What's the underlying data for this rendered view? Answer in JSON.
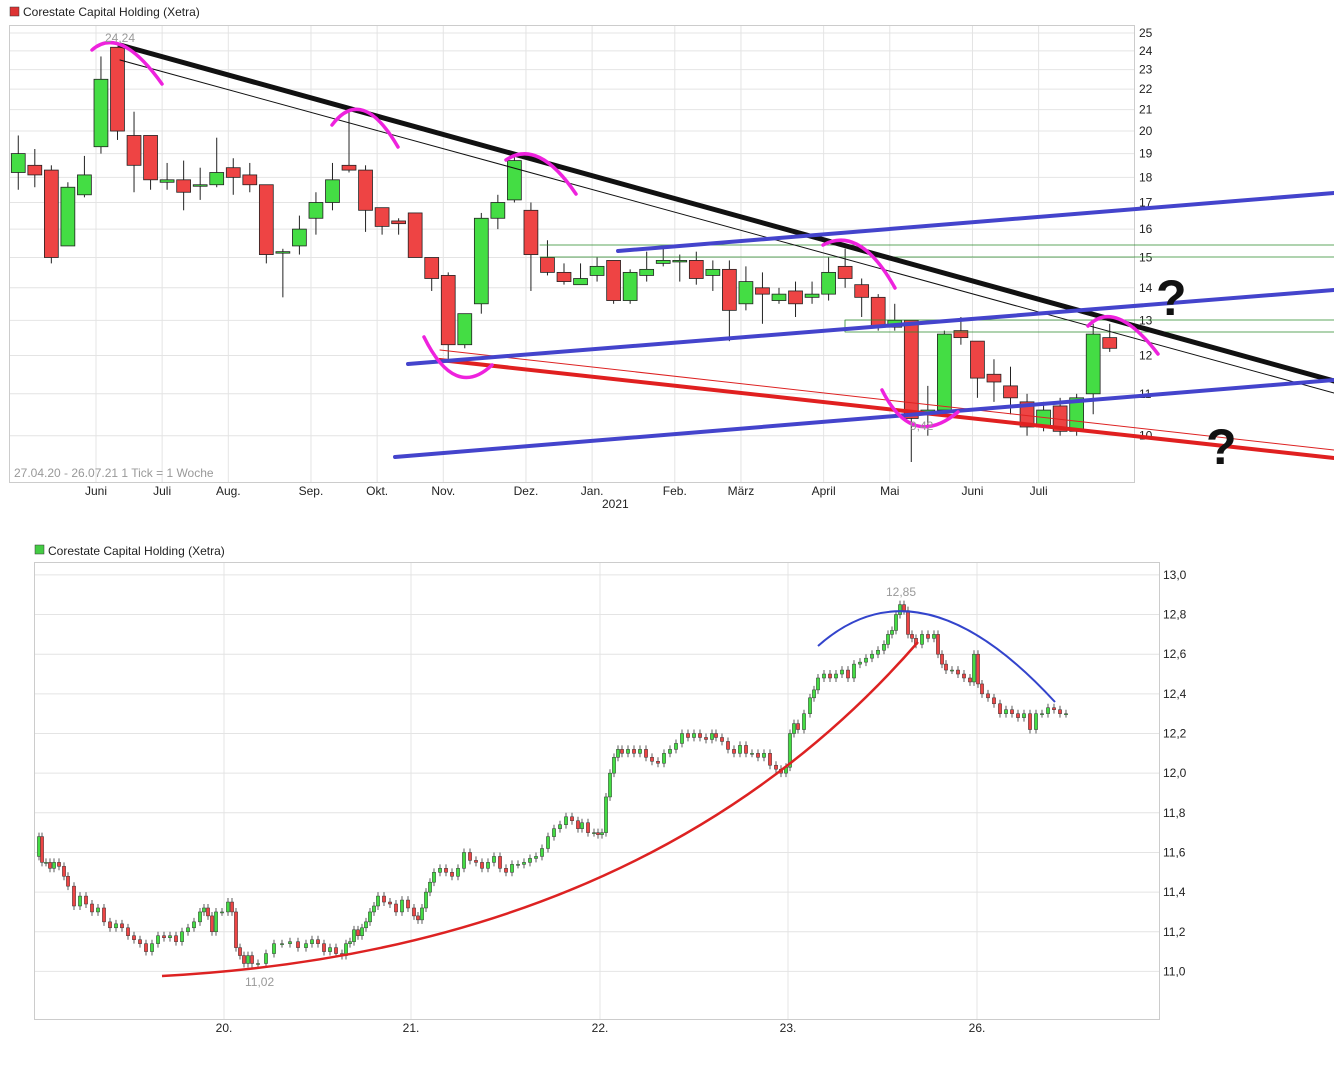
{
  "chart_data": [
    {
      "type": "candlestick",
      "title": "Corestate Capital Holding (Xetra)",
      "legend_color": "#dd3333",
      "info_text": "27.04.20 - 26.07.21   1 Tick = 1 Woche",
      "high_label": "24,24",
      "low_label": "9,42",
      "ylim": [
        9.0,
        25.4
      ],
      "y_scale": "log",
      "y_ticks": [
        "25",
        "24",
        "23",
        "22",
        "21",
        "20",
        "19",
        "18",
        "17",
        "16",
        "15",
        "14",
        "13",
        "12",
        "11",
        "10"
      ],
      "x_months": [
        "Juni",
        "Juli",
        "Aug.",
        "Sep.",
        "Okt.",
        "Nov.",
        "Dez.",
        "Jan.",
        "Feb.",
        "März",
        "April",
        "Mai",
        "Juni",
        "Juli"
      ],
      "x_year": "2021",
      "candles": [
        {
          "o": 18.2,
          "c": 19.0,
          "h": 19.8,
          "l": 17.5
        },
        {
          "o": 18.5,
          "c": 18.1,
          "h": 19.2,
          "l": 17.6
        },
        {
          "o": 18.3,
          "c": 15.0,
          "h": 18.5,
          "l": 14.8
        },
        {
          "o": 15.4,
          "c": 17.6,
          "h": 17.8,
          "l": 15.4
        },
        {
          "o": 17.3,
          "c": 18.1,
          "h": 18.9,
          "l": 17.2
        },
        {
          "o": 19.3,
          "c": 22.5,
          "h": 23.7,
          "l": 19.0
        },
        {
          "o": 24.2,
          "c": 20.0,
          "h": 24.24,
          "l": 19.6
        },
        {
          "o": 19.8,
          "c": 18.5,
          "h": 20.9,
          "l": 17.4
        },
        {
          "o": 19.8,
          "c": 17.9,
          "h": 19.8,
          "l": 17.5
        },
        {
          "o": 17.8,
          "c": 17.9,
          "h": 18.6,
          "l": 17.5
        },
        {
          "o": 17.9,
          "c": 17.4,
          "h": 18.7,
          "l": 16.7
        },
        {
          "o": 17.7,
          "c": 17.7,
          "h": 18.4,
          "l": 17.1
        },
        {
          "o": 17.7,
          "c": 18.2,
          "h": 19.7,
          "l": 17.6
        },
        {
          "o": 18.4,
          "c": 18.0,
          "h": 18.8,
          "l": 17.3
        },
        {
          "o": 18.1,
          "c": 17.7,
          "h": 18.6,
          "l": 17.4
        },
        {
          "o": 17.7,
          "c": 15.1,
          "h": 17.7,
          "l": 14.8
        },
        {
          "o": 15.2,
          "c": 15.2,
          "h": 15.3,
          "l": 13.7
        },
        {
          "o": 15.4,
          "c": 16.0,
          "h": 16.5,
          "l": 15.1
        },
        {
          "o": 16.4,
          "c": 17.0,
          "h": 17.4,
          "l": 15.8
        },
        {
          "o": 17.0,
          "c": 17.9,
          "h": 18.6,
          "l": 16.7
        },
        {
          "o": 18.5,
          "c": 18.3,
          "h": 20.9,
          "l": 18.2
        },
        {
          "o": 18.3,
          "c": 16.7,
          "h": 18.5,
          "l": 15.9
        },
        {
          "o": 16.8,
          "c": 16.1,
          "h": 16.8,
          "l": 15.8
        },
        {
          "o": 16.3,
          "c": 16.2,
          "h": 16.4,
          "l": 15.8
        },
        {
          "o": 16.6,
          "c": 15.0,
          "h": 16.6,
          "l": 15.0
        },
        {
          "o": 15.0,
          "c": 14.3,
          "h": 15.0,
          "l": 13.9
        },
        {
          "o": 14.4,
          "c": 12.3,
          "h": 14.5,
          "l": 11.8
        },
        {
          "o": 12.3,
          "c": 13.2,
          "h": 13.2,
          "l": 12.2
        },
        {
          "o": 13.5,
          "c": 16.4,
          "h": 16.6,
          "l": 13.2
        },
        {
          "o": 16.4,
          "c": 17.0,
          "h": 17.3,
          "l": 16.0
        },
        {
          "o": 17.1,
          "c": 18.7,
          "h": 18.9,
          "l": 17.0
        },
        {
          "o": 16.7,
          "c": 15.1,
          "h": 17.0,
          "l": 13.9
        },
        {
          "o": 15.0,
          "c": 14.5,
          "h": 15.6,
          "l": 14.4
        },
        {
          "o": 14.5,
          "c": 14.2,
          "h": 14.8,
          "l": 14.1
        },
        {
          "o": 14.1,
          "c": 14.3,
          "h": 14.8,
          "l": 14.1
        },
        {
          "o": 14.4,
          "c": 14.7,
          "h": 15.0,
          "l": 14.2
        },
        {
          "o": 14.9,
          "c": 13.6,
          "h": 14.9,
          "l": 13.5
        },
        {
          "o": 13.6,
          "c": 14.5,
          "h": 14.6,
          "l": 13.5
        },
        {
          "o": 14.4,
          "c": 14.6,
          "h": 15.2,
          "l": 14.2
        },
        {
          "o": 14.8,
          "c": 14.9,
          "h": 15.3,
          "l": 14.7
        },
        {
          "o": 14.9,
          "c": 14.9,
          "h": 15.1,
          "l": 14.2
        },
        {
          "o": 14.9,
          "c": 14.3,
          "h": 15.2,
          "l": 14.1
        },
        {
          "o": 14.4,
          "c": 14.6,
          "h": 14.9,
          "l": 13.9
        },
        {
          "o": 14.6,
          "c": 13.3,
          "h": 14.9,
          "l": 12.4
        },
        {
          "o": 13.5,
          "c": 14.2,
          "h": 14.7,
          "l": 13.3
        },
        {
          "o": 14.0,
          "c": 13.8,
          "h": 14.5,
          "l": 12.9
        },
        {
          "o": 13.6,
          "c": 13.8,
          "h": 14.0,
          "l": 13.5
        },
        {
          "o": 13.9,
          "c": 13.5,
          "h": 14.2,
          "l": 13.1
        },
        {
          "o": 13.7,
          "c": 13.8,
          "h": 14.2,
          "l": 13.5
        },
        {
          "o": 13.8,
          "c": 14.5,
          "h": 15.0,
          "l": 13.6
        },
        {
          "o": 14.7,
          "c": 14.3,
          "h": 15.3,
          "l": 14.0
        },
        {
          "o": 14.1,
          "c": 13.7,
          "h": 14.3,
          "l": 13.1
        },
        {
          "o": 13.7,
          "c": 12.8,
          "h": 13.8,
          "l": 12.7
        },
        {
          "o": 12.8,
          "c": 13.0,
          "h": 13.5,
          "l": 12.7
        },
        {
          "o": 13.0,
          "c": 10.4,
          "h": 13.0,
          "l": 9.42
        },
        {
          "o": 10.5,
          "c": 10.6,
          "h": 11.2,
          "l": 10.0
        },
        {
          "o": 10.6,
          "c": 12.6,
          "h": 12.7,
          "l": 10.5
        },
        {
          "o": 12.7,
          "c": 12.5,
          "h": 13.1,
          "l": 12.3
        },
        {
          "o": 12.4,
          "c": 11.4,
          "h": 12.4,
          "l": 10.9
        },
        {
          "o": 11.5,
          "c": 11.3,
          "h": 11.9,
          "l": 10.8
        },
        {
          "o": 11.2,
          "c": 10.9,
          "h": 11.7,
          "l": 10.5
        },
        {
          "o": 10.8,
          "c": 10.2,
          "h": 11.0,
          "l": 10.0
        },
        {
          "o": 10.2,
          "c": 10.6,
          "h": 10.8,
          "l": 10.1
        },
        {
          "o": 10.7,
          "c": 10.1,
          "h": 10.9,
          "l": 10.0
        },
        {
          "o": 10.1,
          "c": 10.9,
          "h": 11.0,
          "l": 10.0
        },
        {
          "o": 11.0,
          "c": 12.6,
          "h": 12.9,
          "l": 10.5
        },
        {
          "o": 12.5,
          "c": 12.2,
          "h": 12.9,
          "l": 12.1
        }
      ]
    },
    {
      "type": "candlestick",
      "title": "Corestate Capital Holding (Xetra)",
      "legend_color": "#44cc44",
      "high_label": "12,85",
      "low_label": "11,02",
      "ylim": [
        10.76,
        13.06
      ],
      "y_ticks": [
        "13,0",
        "12,8",
        "12,6",
        "12,4",
        "12,2",
        "12,0",
        "11,8",
        "11,6",
        "11,4",
        "11,2",
        "11,0"
      ],
      "x_ticks": [
        "20.",
        "21.",
        "22.",
        "23.",
        "26."
      ],
      "path": [
        [
          0,
          11.58
        ],
        [
          3,
          11.68
        ],
        [
          6,
          11.55
        ],
        [
          10,
          11.55
        ],
        [
          14,
          11.52
        ],
        [
          18,
          11.55
        ],
        [
          23,
          11.53
        ],
        [
          28,
          11.48
        ],
        [
          32,
          11.43
        ],
        [
          38,
          11.33
        ],
        [
          44,
          11.38
        ],
        [
          50,
          11.34
        ],
        [
          56,
          11.3
        ],
        [
          62,
          11.32
        ],
        [
          68,
          11.25
        ],
        [
          74,
          11.22
        ],
        [
          80,
          11.24
        ],
        [
          86,
          11.22
        ],
        [
          92,
          11.18
        ],
        [
          98,
          11.16
        ],
        [
          104,
          11.14
        ],
        [
          110,
          11.1
        ],
        [
          116,
          11.14
        ],
        [
          122,
          11.18
        ],
        [
          128,
          11.17
        ],
        [
          134,
          11.18
        ],
        [
          140,
          11.15
        ],
        [
          146,
          11.2
        ],
        [
          152,
          11.22
        ],
        [
          158,
          11.25
        ],
        [
          164,
          11.3
        ],
        [
          168,
          11.32
        ],
        [
          172,
          11.28
        ],
        [
          176,
          11.2
        ],
        [
          180,
          11.3
        ],
        [
          186,
          11.3
        ],
        [
          192,
          11.35
        ],
        [
          196,
          11.3
        ],
        [
          200,
          11.12
        ],
        [
          204,
          11.08
        ],
        [
          208,
          11.04
        ],
        [
          212,
          11.08
        ],
        [
          216,
          11.04
        ],
        [
          222,
          11.04
        ],
        [
          230,
          11.09
        ],
        [
          238,
          11.14
        ],
        [
          246,
          11.14
        ],
        [
          254,
          11.15
        ],
        [
          262,
          11.12
        ],
        [
          270,
          11.14
        ],
        [
          276,
          11.16
        ],
        [
          282,
          11.14
        ],
        [
          288,
          11.1
        ],
        [
          294,
          11.12
        ],
        [
          300,
          11.09
        ],
        [
          306,
          11.08
        ],
        [
          310,
          11.14
        ],
        [
          314,
          11.15
        ],
        [
          318,
          11.21
        ],
        [
          322,
          11.18
        ],
        [
          326,
          11.22
        ],
        [
          330,
          11.25
        ],
        [
          334,
          11.3
        ],
        [
          338,
          11.33
        ],
        [
          342,
          11.38
        ],
        [
          348,
          11.35
        ],
        [
          354,
          11.34
        ],
        [
          360,
          11.3
        ],
        [
          366,
          11.36
        ],
        [
          372,
          11.32
        ],
        [
          378,
          11.28
        ],
        [
          382,
          11.26
        ],
        [
          386,
          11.32
        ],
        [
          390,
          11.4
        ],
        [
          394,
          11.45
        ],
        [
          398,
          11.5
        ],
        [
          404,
          11.52
        ],
        [
          410,
          11.5
        ],
        [
          416,
          11.48
        ],
        [
          422,
          11.52
        ],
        [
          428,
          11.6
        ],
        [
          434,
          11.56
        ],
        [
          440,
          11.55
        ],
        [
          446,
          11.52
        ],
        [
          452,
          11.55
        ],
        [
          458,
          11.58
        ],
        [
          464,
          11.52
        ],
        [
          470,
          11.5
        ],
        [
          476,
          11.54
        ],
        [
          482,
          11.54
        ],
        [
          488,
          11.55
        ],
        [
          494,
          11.57
        ],
        [
          500,
          11.58
        ],
        [
          506,
          11.62
        ],
        [
          512,
          11.68
        ],
        [
          518,
          11.72
        ],
        [
          524,
          11.74
        ],
        [
          530,
          11.78
        ],
        [
          536,
          11.76
        ],
        [
          542,
          11.72
        ],
        [
          546,
          11.75
        ],
        [
          552,
          11.7
        ],
        [
          558,
          11.7
        ],
        [
          562,
          11.69
        ],
        [
          566,
          11.7
        ],
        [
          570,
          11.88
        ],
        [
          574,
          12.0
        ],
        [
          578,
          12.08
        ],
        [
          582,
          12.12
        ],
        [
          586,
          12.1
        ],
        [
          592,
          12.12
        ],
        [
          598,
          12.1
        ],
        [
          604,
          12.12
        ],
        [
          610,
          12.08
        ],
        [
          616,
          12.06
        ],
        [
          622,
          12.05
        ],
        [
          628,
          12.1
        ],
        [
          634,
          12.12
        ],
        [
          640,
          12.15
        ],
        [
          646,
          12.2
        ],
        [
          652,
          12.18
        ],
        [
          658,
          12.2
        ],
        [
          664,
          12.18
        ],
        [
          670,
          12.17
        ],
        [
          676,
          12.2
        ],
        [
          680,
          12.18
        ],
        [
          686,
          12.16
        ],
        [
          692,
          12.12
        ],
        [
          698,
          12.1
        ],
        [
          704,
          12.14
        ],
        [
          710,
          12.1
        ],
        [
          716,
          12.1
        ],
        [
          722,
          12.08
        ],
        [
          728,
          12.1
        ],
        [
          734,
          12.04
        ],
        [
          740,
          12.02
        ],
        [
          745,
          12.0
        ],
        [
          750,
          12.03
        ],
        [
          754,
          12.2
        ],
        [
          758,
          12.25
        ],
        [
          762,
          12.22
        ],
        [
          768,
          12.3
        ],
        [
          774,
          12.38
        ],
        [
          778,
          12.42
        ],
        [
          782,
          12.48
        ],
        [
          788,
          12.5
        ],
        [
          794,
          12.48
        ],
        [
          800,
          12.5
        ],
        [
          806,
          12.52
        ],
        [
          812,
          12.48
        ],
        [
          818,
          12.55
        ],
        [
          824,
          12.56
        ],
        [
          830,
          12.58
        ],
        [
          836,
          12.6
        ],
        [
          842,
          12.62
        ],
        [
          848,
          12.65
        ],
        [
          852,
          12.7
        ],
        [
          856,
          12.72
        ],
        [
          860,
          12.8
        ],
        [
          864,
          12.85
        ],
        [
          868,
          12.82
        ],
        [
          872,
          12.7
        ],
        [
          876,
          12.68
        ],
        [
          880,
          12.65
        ],
        [
          886,
          12.7
        ],
        [
          892,
          12.68
        ],
        [
          898,
          12.7
        ],
        [
          902,
          12.6
        ],
        [
          906,
          12.55
        ],
        [
          910,
          12.52
        ],
        [
          916,
          12.52
        ],
        [
          922,
          12.5
        ],
        [
          928,
          12.48
        ],
        [
          934,
          12.46
        ],
        [
          938,
          12.6
        ],
        [
          942,
          12.45
        ],
        [
          946,
          12.4
        ],
        [
          952,
          12.38
        ],
        [
          958,
          12.35
        ],
        [
          964,
          12.3
        ],
        [
          970,
          12.32
        ],
        [
          976,
          12.3
        ],
        [
          982,
          12.28
        ],
        [
          988,
          12.3
        ],
        [
          994,
          12.22
        ],
        [
          1000,
          12.3
        ],
        [
          1006,
          12.3
        ],
        [
          1012,
          12.33
        ],
        [
          1018,
          12.32
        ],
        [
          1024,
          12.3
        ],
        [
          1030,
          12.3
        ]
      ]
    }
  ]
}
